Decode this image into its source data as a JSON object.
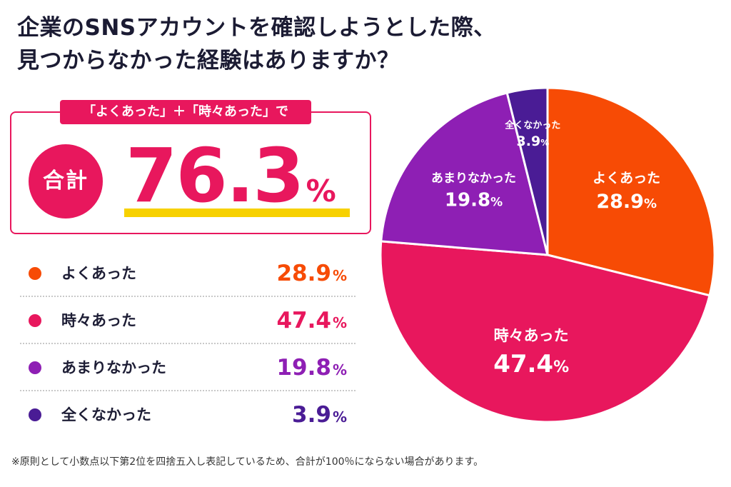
{
  "title": {
    "line1": "企業のSNSアカウントを確認しようとした際、",
    "line2": "見つからなかった経験はありますか？"
  },
  "summary": {
    "caption": "「よくあった」＋「時々あった」で",
    "total_label": "合計",
    "total_value": "76.3",
    "percent_sign": "%",
    "accent_color": "#e8175d",
    "underline_color": "#f7d100"
  },
  "legend": [
    {
      "label": "よくあった",
      "value": "28.9",
      "color": "#f74b05"
    },
    {
      "label": "時々あった",
      "value": "47.4",
      "color": "#e8175d"
    },
    {
      "label": "あまりなかった",
      "value": "19.8",
      "color": "#8e1fb4"
    },
    {
      "label": "全くなかった",
      "value": "3.9",
      "color": "#4a1c95"
    }
  ],
  "chart_data": {
    "type": "pie",
    "start_angle_deg": 0,
    "direction": "clockwise",
    "slices": [
      {
        "label": "よくあった",
        "value": 28.9,
        "color": "#f74b05"
      },
      {
        "label": "時々あった",
        "value": 47.4,
        "color": "#e8175d"
      },
      {
        "label": "あまりなかった",
        "value": 19.8,
        "color": "#8e1fb4"
      },
      {
        "label": "全くなかった",
        "value": 3.9,
        "color": "#4a1c95"
      }
    ],
    "unit": "%"
  },
  "footnote": "※原則として小数点以下第2位を四捨五入し表記しているため、合計が100％にならない場合があります。"
}
